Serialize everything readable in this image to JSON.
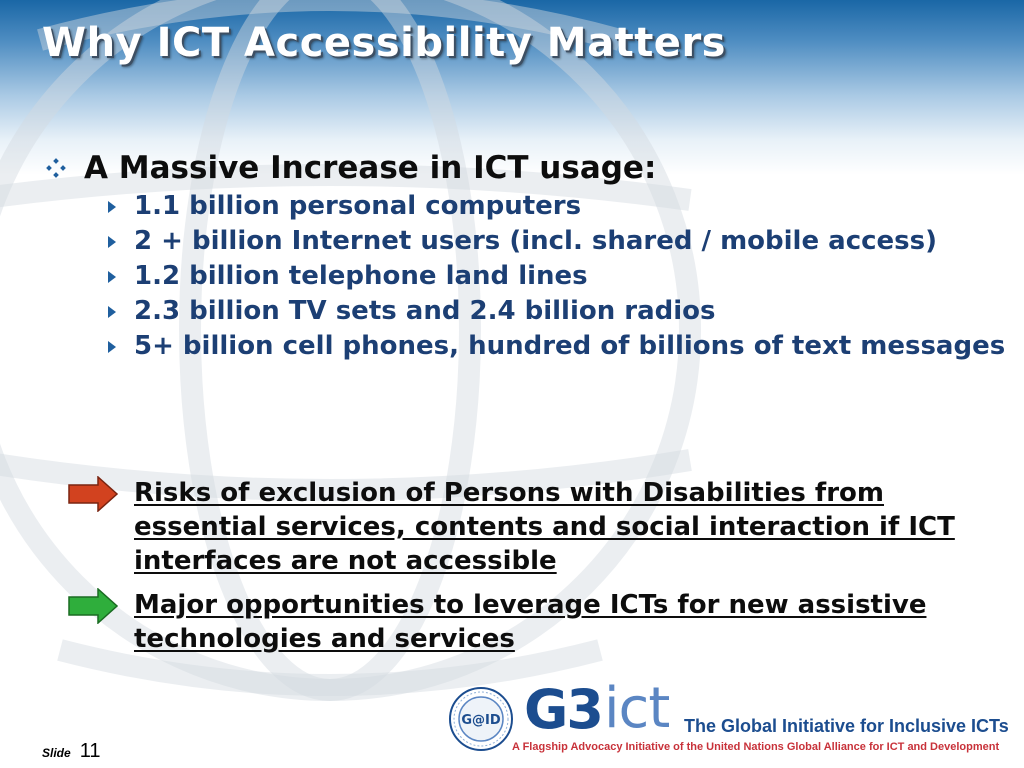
{
  "title": "Why ICT Accessibility Matters",
  "main_bullet": "A Massive Increase in ICT usage:",
  "sub_bullets": [
    "1.1 billion personal computers",
    "2 + billion Internet users (incl. shared / mobile access)",
    "1.2 billion telephone land lines",
    "2.3 billion TV sets and 2.4 billion radios",
    "5+ billion cell phones, hundred of billions of text messages"
  ],
  "callouts": {
    "risk": "Risks of exclusion of Persons with Disabilities from essential services, contents and social interaction if ICT interfaces are not accessible",
    "opportunity": "Major opportunities to leverage ICTs for new assistive technologies and services"
  },
  "logo": {
    "seal_text": "G@ID",
    "g3": "G3",
    "ict": "ict",
    "tagline": "The Global Initiative for Inclusive ICTs",
    "subtitle": "A Flagship Advocacy Initiative of the United Nations Global Alliance for ICT and Development"
  },
  "footer": {
    "slide_label": "Slide",
    "slide_number": "11"
  },
  "colors": {
    "title_text": "#ffffff",
    "header_blue": "#1a67a6",
    "sub_bullet_text": "#1c3f74",
    "risk_arrow": "#d2421f",
    "opportunity_arrow": "#2fae3c"
  },
  "icons": {
    "main_bullet": "diamond-bullet-icon",
    "sub_bullet": "triangle-bullet-icon",
    "risk": "red-arrow-icon",
    "opportunity": "green-arrow-icon"
  }
}
